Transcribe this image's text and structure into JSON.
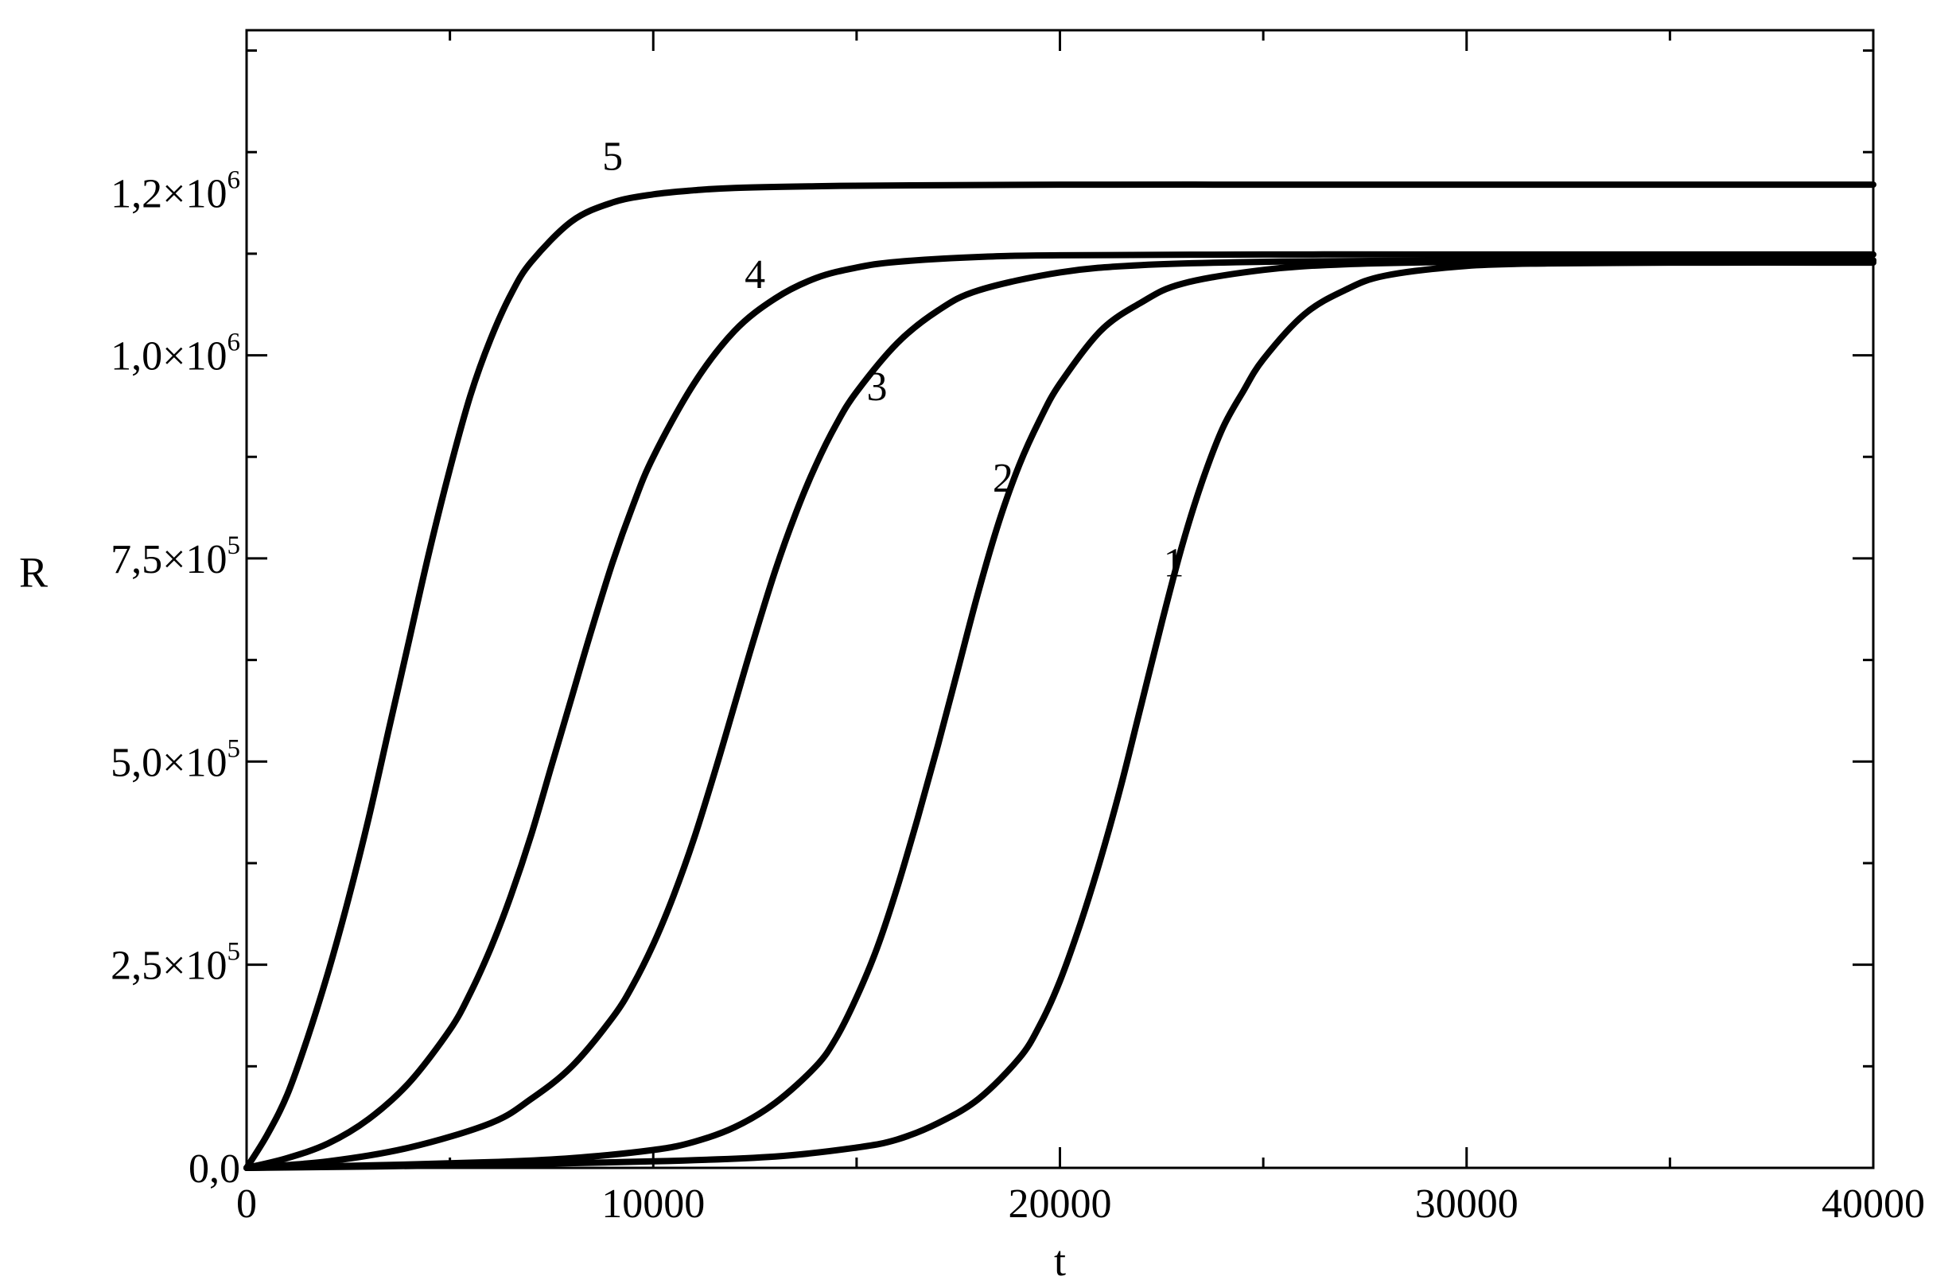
{
  "chart_data": {
    "type": "line",
    "xlabel": "t",
    "ylabel": "R",
    "xlim": [
      0,
      40000
    ],
    "ylim": [
      0,
      1400000
    ],
    "x_ticks": [
      {
        "value": 0,
        "label": "0"
      },
      {
        "value": 10000,
        "label": "10000"
      },
      {
        "value": 20000,
        "label": "20000"
      },
      {
        "value": 30000,
        "label": "30000"
      },
      {
        "value": 40000,
        "label": "40000"
      }
    ],
    "y_ticks": [
      {
        "value": 0,
        "mantissa": "0,0",
        "exponent": ""
      },
      {
        "value": 250000,
        "mantissa": "2,5×10",
        "exponent": "5"
      },
      {
        "value": 500000,
        "mantissa": "5,0×10",
        "exponent": "5"
      },
      {
        "value": 750000,
        "mantissa": "7,5×10",
        "exponent": "5"
      },
      {
        "value": 1000000,
        "mantissa": "1,0×10",
        "exponent": "6"
      },
      {
        "value": 1200000,
        "mantissa": "1,2×10",
        "exponent": "6"
      }
    ],
    "x_minor_step": 5000,
    "y_minor_step": 125000,
    "grid": false,
    "series": [
      {
        "label": "1",
        "label_at": [
          22800,
          728000
        ],
        "x": [
          0,
          5000,
          10000,
          13000,
          15000,
          16000,
          17000,
          18000,
          19000,
          19500,
          20000,
          20500,
          21000,
          21500,
          22000,
          22500,
          23000,
          23500,
          24000,
          24500,
          25000,
          26000,
          27000,
          28000,
          30000,
          32000,
          35000,
          40000
        ],
        "y": [
          0,
          3000,
          8000,
          14000,
          25000,
          35000,
          55000,
          85000,
          135000,
          175000,
          230000,
          300000,
          380000,
          470000,
          570000,
          670000,
          765000,
          845000,
          910000,
          955000,
          995000,
          1050000,
          1080000,
          1098000,
          1110000,
          1113000,
          1114000,
          1114000
        ]
      },
      {
        "label": "2",
        "label_at": [
          18600,
          832000
        ],
        "x": [
          0,
          3000,
          6000,
          8000,
          10000,
          11000,
          12000,
          13000,
          14000,
          14500,
          15000,
          15500,
          16000,
          16500,
          17000,
          17500,
          18000,
          18500,
          19000,
          19500,
          20000,
          21000,
          22000,
          23000,
          25000,
          27000,
          30000,
          35000,
          40000
        ],
        "y": [
          0,
          3000,
          7000,
          12000,
          22000,
          32000,
          50000,
          80000,
          125000,
          160000,
          210000,
          270000,
          345000,
          430000,
          520000,
          615000,
          710000,
          795000,
          865000,
          920000,
          965000,
          1030000,
          1065000,
          1088000,
          1105000,
          1112000,
          1115000,
          1116000,
          1116000
        ]
      },
      {
        "label": "3",
        "label_at": [
          15500,
          945000
        ],
        "x": [
          0,
          2000,
          4000,
          6000,
          7000,
          8000,
          9000,
          9500,
          10000,
          10500,
          11000,
          11500,
          12000,
          12500,
          13000,
          13500,
          14000,
          14500,
          15000,
          16000,
          17000,
          18000,
          20000,
          22000,
          25000,
          30000,
          40000
        ],
        "y": [
          0,
          8000,
          25000,
          55000,
          85000,
          125000,
          185000,
          225000,
          275000,
          335000,
          405000,
          485000,
          570000,
          655000,
          735000,
          805000,
          865000,
          915000,
          955000,
          1015000,
          1055000,
          1080000,
          1102000,
          1111000,
          1115000,
          1117000,
          1117000
        ]
      },
      {
        "label": "4",
        "label_at": [
          12500,
          1083000
        ],
        "x": [
          0,
          1000,
          2000,
          3000,
          4000,
          5000,
          5500,
          6000,
          6500,
          7000,
          7500,
          8000,
          8500,
          9000,
          9500,
          10000,
          11000,
          12000,
          13000,
          14000,
          15000,
          16000,
          18000,
          20000,
          25000,
          30000,
          40000
        ],
        "y": [
          0,
          12000,
          30000,
          60000,
          105000,
          170000,
          215000,
          270000,
          335000,
          410000,
          495000,
          580000,
          665000,
          745000,
          815000,
          875000,
          965000,
          1030000,
          1070000,
          1095000,
          1108000,
          1115000,
          1121000,
          1123000,
          1124000,
          1124000,
          1124000
        ]
      },
      {
        "label": "5",
        "label_at": [
          9000,
          1228000
        ],
        "x": [
          0,
          500,
          1000,
          1500,
          2000,
          2500,
          3000,
          3500,
          4000,
          4500,
          5000,
          5500,
          6000,
          6500,
          7000,
          8000,
          9000,
          10000,
          11000,
          12000,
          14000,
          16000,
          20000,
          25000,
          30000,
          40000
        ],
        "y": [
          0,
          40000,
          90000,
          160000,
          240000,
          330000,
          430000,
          540000,
          650000,
          760000,
          860000,
          950000,
          1020000,
          1075000,
          1115000,
          1165000,
          1188000,
          1198000,
          1203000,
          1206000,
          1208000,
          1209000,
          1210000,
          1210000,
          1210000,
          1210000
        ]
      }
    ]
  }
}
